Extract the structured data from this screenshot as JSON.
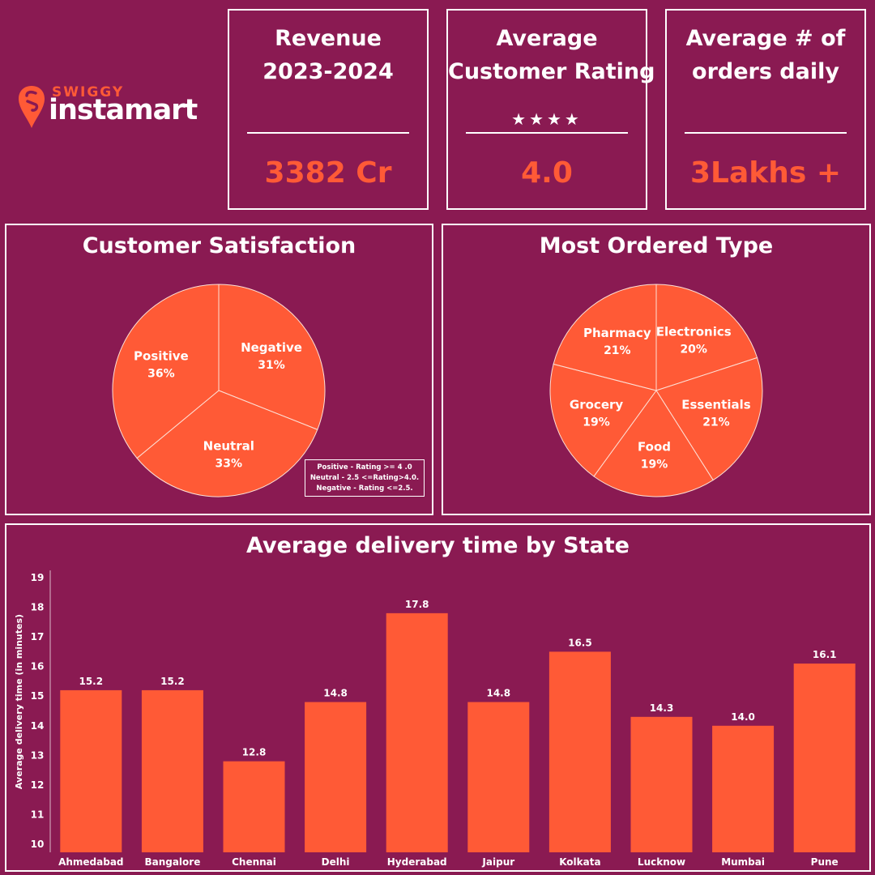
{
  "brand": {
    "small": "SWIGGY",
    "big": "instamart"
  },
  "kpis": [
    {
      "title_lines": [
        "Revenue",
        "2023-2024"
      ],
      "value": "3382 Cr",
      "stars": ""
    },
    {
      "title_lines": [
        "Average",
        "Customer Rating"
      ],
      "value": "4.0",
      "stars": "★★★★"
    },
    {
      "title_lines": [
        "Average # of",
        "orders daily"
      ],
      "value": "3Lakhs +",
      "stars": ""
    }
  ],
  "satisfaction": {
    "title": "Customer Satisfaction",
    "legend": [
      "Positive - Rating >= 4 .0",
      "Neutral - 2.5 <=Rating>4.0.",
      "Negative - Rating <=2.5."
    ]
  },
  "ordered_type": {
    "title": "Most Ordered Type"
  },
  "delivery": {
    "title": "Average delivery time by State"
  },
  "colors": {
    "background": "#8a1a52",
    "accent": "#ff5a36",
    "border": "#ffffff"
  },
  "chart_data": [
    {
      "type": "pie",
      "title": "Customer Satisfaction",
      "labels": [
        "Negative",
        "Neutral",
        "Positive"
      ],
      "values": [
        31,
        33,
        36
      ],
      "value_labels": [
        "31%",
        "33%",
        "36%"
      ]
    },
    {
      "type": "pie",
      "title": "Most Ordered Type",
      "labels": [
        "Electronics",
        "Essentials",
        "Food",
        "Grocery",
        "Pharmacy"
      ],
      "values": [
        20,
        21,
        19,
        19,
        21
      ],
      "value_labels": [
        "20%",
        "21%",
        "19%",
        "19%",
        "21%"
      ]
    },
    {
      "type": "bar",
      "title": "Average delivery time by State",
      "categories": [
        "Ahmedabad",
        "Bangalore",
        "Chennai",
        "Delhi",
        "Hyderabad",
        "Jaipur",
        "Kolkata",
        "Lucknow",
        "Mumbai",
        "Pune"
      ],
      "values": [
        15.2,
        15.2,
        12.8,
        14.8,
        17.8,
        14.8,
        16.5,
        14.3,
        14.0,
        16.1
      ],
      "value_labels": [
        "15.2",
        "15.2",
        "12.8",
        "14.8",
        "17.8",
        "14.8",
        "16.5",
        "14.3",
        "14.0",
        "16.1"
      ],
      "ylabel": "Average delivery time (in minutes)",
      "yticks": [
        "10",
        "11",
        "12",
        "13",
        "14",
        "15",
        "16",
        "17",
        "18",
        "19"
      ],
      "ylim": [
        10,
        19
      ],
      "grid": false,
      "legend": "none"
    }
  ]
}
